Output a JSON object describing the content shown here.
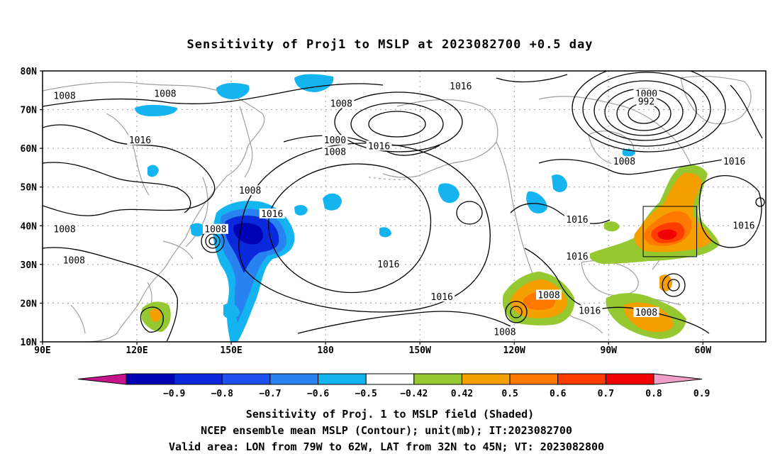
{
  "title": "Sensitivity of Proj1 to MSLP at 2023082700 +0.5 day",
  "axes": {
    "lat_labels": [
      "80N",
      "70N",
      "60N",
      "50N",
      "40N",
      "30N",
      "20N",
      "10N"
    ],
    "lon_labels": [
      "90E",
      "120E",
      "150E",
      "180",
      "150W",
      "120W",
      "90W",
      "60W"
    ],
    "lat_values": [
      80,
      70,
      60,
      50,
      40,
      30,
      20,
      10
    ],
    "lon_values": [
      90,
      120,
      150,
      180,
      210,
      240,
      270,
      300
    ],
    "lon_range": [
      90,
      320
    ],
    "lat_range": [
      10,
      80
    ],
    "grid": true
  },
  "colorbar": {
    "tick_labels": [
      "-0.9",
      "-0.8",
      "-0.7",
      "-0.6",
      "-0.5",
      "-0.42",
      "0.42",
      "0.5",
      "0.6",
      "0.7",
      "0.8",
      "0.9"
    ],
    "colors": [
      "#c8148c",
      "#0000b4",
      "#0a28dc",
      "#1e50f0",
      "#2882f0",
      "#14b4f0",
      "#ffffff",
      "#96c832",
      "#f5a000",
      "#ff7800",
      "#ff3c00",
      "#f00000",
      "#f0a0c8"
    ]
  },
  "contour_labels": [
    {
      "text": "1008",
      "lon": 97,
      "lat": 73.5
    },
    {
      "text": "1008",
      "lon": 129,
      "lat": 74
    },
    {
      "text": "1008",
      "lon": 185,
      "lat": 71.5
    },
    {
      "text": "1016",
      "lon": 223,
      "lat": 76
    },
    {
      "text": "1000",
      "lon": 282,
      "lat": 74
    },
    {
      "text": "992",
      "lon": 282,
      "lat": 72
    },
    {
      "text": "1016",
      "lon": 121,
      "lat": 62
    },
    {
      "text": "1000",
      "lon": 183,
      "lat": 62
    },
    {
      "text": "1008",
      "lon": 183,
      "lat": 59
    },
    {
      "text": "1016",
      "lon": 197,
      "lat": 60.5
    },
    {
      "text": "1008",
      "lon": 275,
      "lat": 56.5
    },
    {
      "text": "1016",
      "lon": 310,
      "lat": 56.5
    },
    {
      "text": "1008",
      "lon": 156,
      "lat": 49
    },
    {
      "text": "1016",
      "lon": 163,
      "lat": 43
    },
    {
      "text": "1016",
      "lon": 260,
      "lat": 41.5
    },
    {
      "text": "1008",
      "lon": 97,
      "lat": 39
    },
    {
      "text": "1008",
      "lon": 145,
      "lat": 39
    },
    {
      "text": "1016",
      "lon": 313,
      "lat": 40
    },
    {
      "text": "1008",
      "lon": 100,
      "lat": 31
    },
    {
      "text": "1016",
      "lon": 200,
      "lat": 30
    },
    {
      "text": "1016",
      "lon": 260,
      "lat": 32
    },
    {
      "text": "1016",
      "lon": 217,
      "lat": 21.5
    },
    {
      "text": "1008",
      "lon": 251,
      "lat": 22
    },
    {
      "text": "1016",
      "lon": 264,
      "lat": 18
    },
    {
      "text": "1008",
      "lon": 282,
      "lat": 17.5
    },
    {
      "text": "1008",
      "lon": 237,
      "lat": 12.5
    }
  ],
  "valid_box": {
    "lon_min": 281,
    "lon_max": 298,
    "lat_min": 32,
    "lat_max": 45
  },
  "captions": {
    "line1": "Sensitivity of Proj. 1 to MSLP field (Shaded)",
    "line2": "NCEP ensemble mean MSLP (Contour); unit(mb); IT:2023082700",
    "line3": "Valid area: LON from 79W to 62W, LAT from 32N to 45N; VT: 2023082800"
  }
}
